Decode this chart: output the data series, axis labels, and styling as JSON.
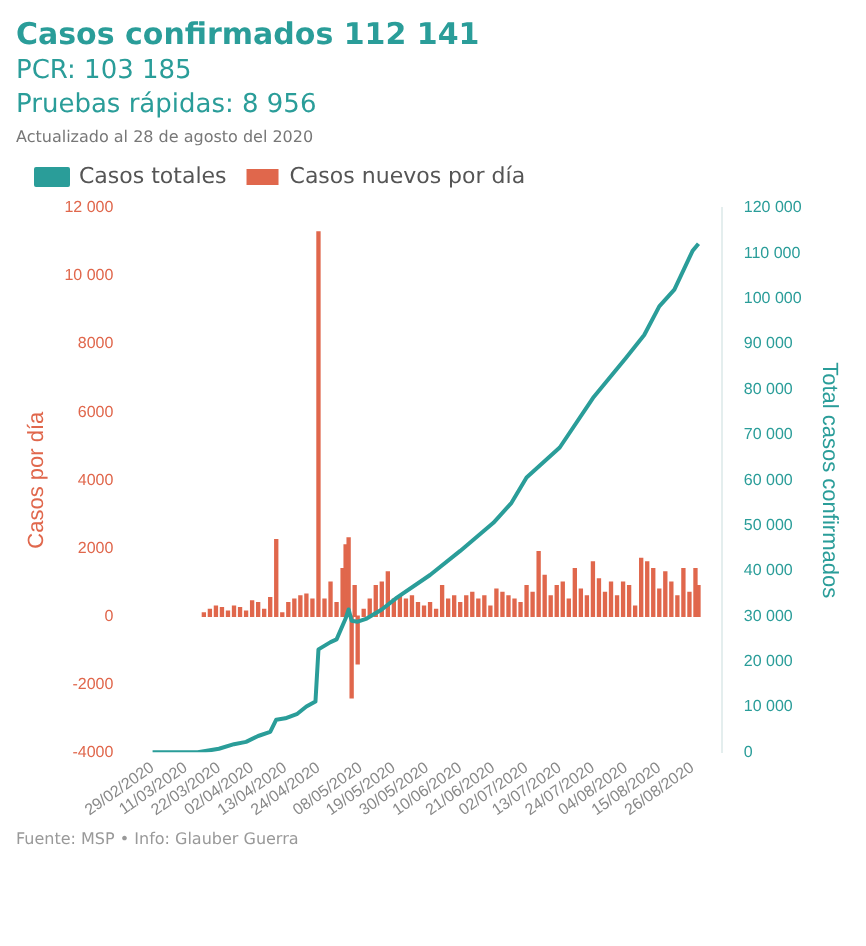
{
  "chart_data": {
    "type": "bar",
    "title": "Casos confirmados 112 141",
    "subtitle": "PCR: 103 185",
    "annotations": [
      "Pruebas rápidas: 8 956",
      "Actualizado al 28 de agosto del 2020",
      "Fuente: MSP • Info: Glauber Guerra"
    ],
    "ylabel": "Casos por día",
    "y2label": "Total casos confirmados",
    "legend": "top left",
    "grid": false,
    "xlim": [
      "2020-02-29",
      "2020-08-30"
    ],
    "xticks": [
      {
        "value": "2020-02-29",
        "label": "29/02/2020"
      },
      {
        "value": "2020-03-11",
        "label": "11/03/2020"
      },
      {
        "value": "2020-03-22",
        "label": "22/03/2020"
      },
      {
        "value": "2020-04-02",
        "label": "02/04/2020"
      },
      {
        "value": "2020-04-13",
        "label": "13/04/2020"
      },
      {
        "value": "2020-04-24",
        "label": "24/04/2020"
      },
      {
        "value": "2020-05-08",
        "label": "08/05/2020"
      },
      {
        "value": "2020-05-19",
        "label": "19/05/2020"
      },
      {
        "value": "2020-05-30",
        "label": "30/05/2020"
      },
      {
        "value": "2020-06-10",
        "label": "10/06/2020"
      },
      {
        "value": "2020-06-21",
        "label": "21/06/2020"
      },
      {
        "value": "2020-07-02",
        "label": "02/07/2020"
      },
      {
        "value": "2020-07-13",
        "label": "13/07/2020"
      },
      {
        "value": "2020-07-24",
        "label": "24/07/2020"
      },
      {
        "value": "2020-08-04",
        "label": "04/08/2020"
      },
      {
        "value": "2020-08-15",
        "label": "15/08/2020"
      },
      {
        "value": "2020-08-26",
        "label": "26/08/2020"
      }
    ],
    "ylim": [
      -4000,
      12000
    ],
    "yticks": [
      -4000,
      -2000,
      0,
      2000,
      4000,
      6000,
      8000,
      {
        "value": 10000,
        "label": "10 000"
      },
      {
        "value": 12000,
        "label": "12 000"
      }
    ],
    "y2lim": [
      0,
      120000
    ],
    "y2ticks": [
      0,
      {
        "value": 10000,
        "label": "10 000"
      },
      {
        "value": 20000,
        "label": "20 000"
      },
      {
        "value": 30000,
        "label": "30 000"
      },
      {
        "value": 40000,
        "label": "40 000"
      },
      {
        "value": 50000,
        "label": "50 000"
      },
      {
        "value": 60000,
        "label": "60 000"
      },
      {
        "value": 70000,
        "label": "70 000"
      },
      {
        "value": 80000,
        "label": "80 000"
      },
      {
        "value": 90000,
        "label": "90 000"
      },
      {
        "value": 100000,
        "label": "100 000"
      },
      {
        "value": 110000,
        "label": "110 000"
      },
      {
        "value": 120000,
        "label": "120 000"
      }
    ],
    "series": [
      {
        "name": "Casos totales",
        "type": "line",
        "axis": "y2",
        "color": "#2a9d99",
        "x": [
          "2020-02-29",
          "2020-03-10",
          "2020-03-15",
          "2020-03-22",
          "2020-03-27",
          "2020-03-31",
          "2020-04-04",
          "2020-04-08",
          "2020-04-10",
          "2020-04-13",
          "2020-04-17",
          "2020-04-20",
          "2020-04-23",
          "2020-04-24",
          "2020-04-28",
          "2020-04-30",
          "2020-05-03",
          "2020-05-04",
          "2020-05-05",
          "2020-05-07",
          "2020-05-10",
          "2020-05-15",
          "2020-05-20",
          "2020-05-31",
          "2020-06-10",
          "2020-06-21",
          "2020-06-27",
          "2020-07-02",
          "2020-07-13",
          "2020-07-24",
          "2020-08-04",
          "2020-08-10",
          "2020-08-15",
          "2020-08-20",
          "2020-08-26",
          "2020-08-28"
        ],
        "values": [
          0,
          0,
          0,
          800,
          1800,
          2300,
          3600,
          4500,
          7200,
          7500,
          8500,
          10100,
          11200,
          22700,
          24300,
          24900,
          29500,
          31500,
          29000,
          28800,
          29500,
          31500,
          34100,
          39100,
          44400,
          50600,
          55000,
          60600,
          67200,
          78100,
          87000,
          92000,
          98300,
          102000,
          110500,
          112141
        ]
      },
      {
        "name": "Casos nuevos por día",
        "color": "#e0674c",
        "x": [
          "2020-03-17",
          "2020-03-19",
          "2020-03-21",
          "2020-03-23",
          "2020-03-25",
          "2020-03-27",
          "2020-03-29",
          "2020-03-31",
          "2020-04-02",
          "2020-04-04",
          "2020-04-06",
          "2020-04-08",
          "2020-04-10",
          "2020-04-12",
          "2020-04-14",
          "2020-04-16",
          "2020-04-18",
          "2020-04-20",
          "2020-04-22",
          "2020-04-24",
          "2020-04-26",
          "2020-04-28",
          "2020-04-30",
          "2020-05-02",
          "2020-05-03",
          "2020-05-04",
          "2020-05-05",
          "2020-05-06",
          "2020-05-07",
          "2020-05-09",
          "2020-05-11",
          "2020-05-13",
          "2020-05-15",
          "2020-05-17",
          "2020-05-19",
          "2020-05-21",
          "2020-05-23",
          "2020-05-25",
          "2020-05-27",
          "2020-05-29",
          "2020-05-31",
          "2020-06-02",
          "2020-06-04",
          "2020-06-06",
          "2020-06-08",
          "2020-06-10",
          "2020-06-12",
          "2020-06-14",
          "2020-06-16",
          "2020-06-18",
          "2020-06-20",
          "2020-06-22",
          "2020-06-24",
          "2020-06-26",
          "2020-06-28",
          "2020-06-30",
          "2020-07-02",
          "2020-07-04",
          "2020-07-06",
          "2020-07-08",
          "2020-07-10",
          "2020-07-12",
          "2020-07-14",
          "2020-07-16",
          "2020-07-18",
          "2020-07-20",
          "2020-07-22",
          "2020-07-24",
          "2020-07-26",
          "2020-07-28",
          "2020-07-30",
          "2020-08-01",
          "2020-08-03",
          "2020-08-05",
          "2020-08-07",
          "2020-08-09",
          "2020-08-11",
          "2020-08-13",
          "2020-08-15",
          "2020-08-17",
          "2020-08-19",
          "2020-08-21",
          "2020-08-23",
          "2020-08-25",
          "2020-08-27",
          "2020-08-28"
        ],
        "values": [
          100,
          200,
          300,
          250,
          150,
          300,
          250,
          150,
          450,
          400,
          200,
          550,
          2250,
          100,
          400,
          500,
          600,
          650,
          500,
          11300,
          500,
          1000,
          400,
          1400,
          2100,
          2300,
          -2400,
          900,
          -1400,
          200,
          500,
          900,
          1000,
          1300,
          500,
          600,
          500,
          600,
          400,
          300,
          400,
          200,
          900,
          500,
          600,
          400,
          600,
          700,
          500,
          600,
          300,
          800,
          700,
          600,
          500,
          400,
          900,
          700,
          1900,
          1200,
          600,
          900,
          1000,
          500,
          1400,
          800,
          600,
          1600,
          1100,
          700,
          1000,
          600,
          1000,
          900,
          300,
          1700,
          1600,
          1400,
          800,
          1300,
          1000,
          600,
          1400,
          700,
          1400,
          900
        ]
      }
    ]
  }
}
